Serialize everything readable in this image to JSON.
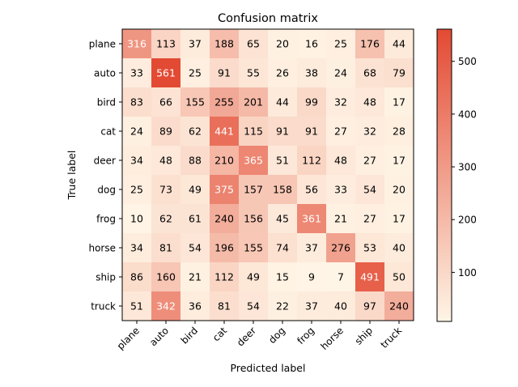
{
  "chart_data": {
    "type": "heatmap",
    "title": "Confusion matrix",
    "xlabel": "Predicted label",
    "ylabel": "True label",
    "x_categories": [
      "plane",
      "auto",
      "bird",
      "cat",
      "deer",
      "dog",
      "frog",
      "horse",
      "ship",
      "truck"
    ],
    "y_categories": [
      "plane",
      "auto",
      "bird",
      "cat",
      "deer",
      "dog",
      "frog",
      "horse",
      "ship",
      "truck"
    ],
    "values": [
      [
        316,
        113,
        37,
        188,
        65,
        20,
        16,
        25,
        176,
        44
      ],
      [
        33,
        561,
        25,
        91,
        55,
        26,
        38,
        24,
        68,
        79
      ],
      [
        83,
        66,
        155,
        255,
        201,
        44,
        99,
        32,
        48,
        17
      ],
      [
        24,
        89,
        62,
        441,
        115,
        91,
        91,
        27,
        32,
        28
      ],
      [
        34,
        48,
        88,
        210,
        365,
        51,
        112,
        48,
        27,
        17
      ],
      [
        25,
        73,
        49,
        375,
        157,
        158,
        56,
        33,
        54,
        20
      ],
      [
        10,
        62,
        61,
        240,
        156,
        45,
        361,
        21,
        27,
        17
      ],
      [
        34,
        81,
        54,
        196,
        155,
        74,
        37,
        276,
        53,
        40
      ],
      [
        86,
        160,
        21,
        112,
        49,
        15,
        9,
        7,
        491,
        50
      ],
      [
        51,
        342,
        36,
        81,
        54,
        22,
        37,
        40,
        97,
        240
      ]
    ],
    "color_range": [
      7,
      561
    ],
    "colormap_start": "#fff5e6",
    "colormap_end": "#e34a33",
    "colorbar_ticks": [
      "100",
      "200",
      "300",
      "400",
      "500"
    ],
    "colorbar_tick_values": [
      100,
      200,
      300,
      400,
      500
    ],
    "grid": false
  }
}
